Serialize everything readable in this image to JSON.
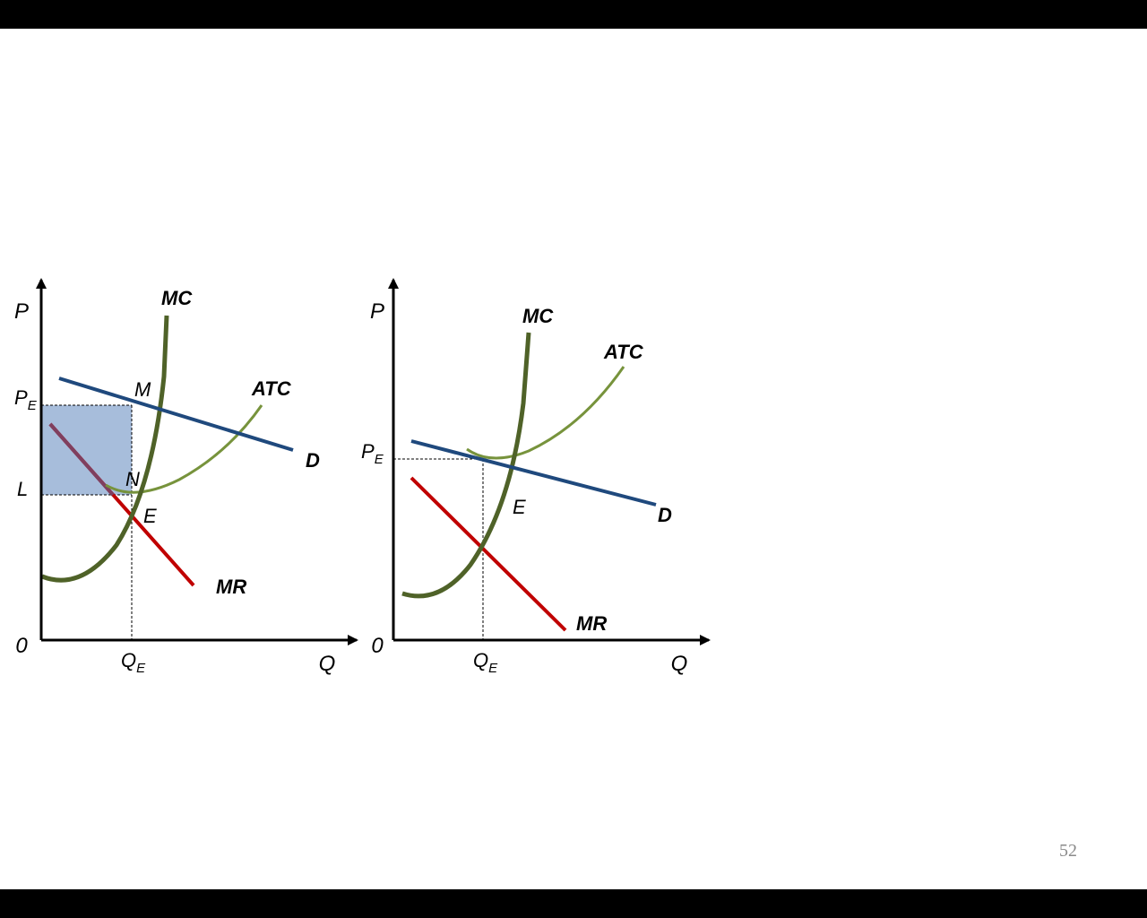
{
  "slide": {
    "page_number": "52"
  },
  "colors": {
    "demand": "#1F497D",
    "mc": "#4F6228",
    "atc": "#77933C",
    "mr": "#C00000",
    "profit_area": "#A7BDDB",
    "axis": "#000000"
  },
  "left_graph": {
    "y_axis_label": "P",
    "x_axis_label": "Q",
    "origin_label": "0",
    "price_label": "P",
    "price_sub": "E",
    "cost_label": "L",
    "quantity_label": "Q",
    "quantity_sub": "E",
    "curves": {
      "mc": "MC",
      "atc": "ATC",
      "demand": "D",
      "mr": "MR"
    },
    "points": {
      "m": "M",
      "n": "N",
      "e": "E"
    }
  },
  "right_graph": {
    "y_axis_label": "P",
    "x_axis_label": "Q",
    "origin_label": "0",
    "price_label": "P",
    "price_sub": "E",
    "quantity_label": "Q",
    "quantity_sub": "E",
    "curves": {
      "mc": "MC",
      "atc": "ATC",
      "demand": "D",
      "mr": "MR"
    },
    "points": {
      "e": "E"
    }
  }
}
